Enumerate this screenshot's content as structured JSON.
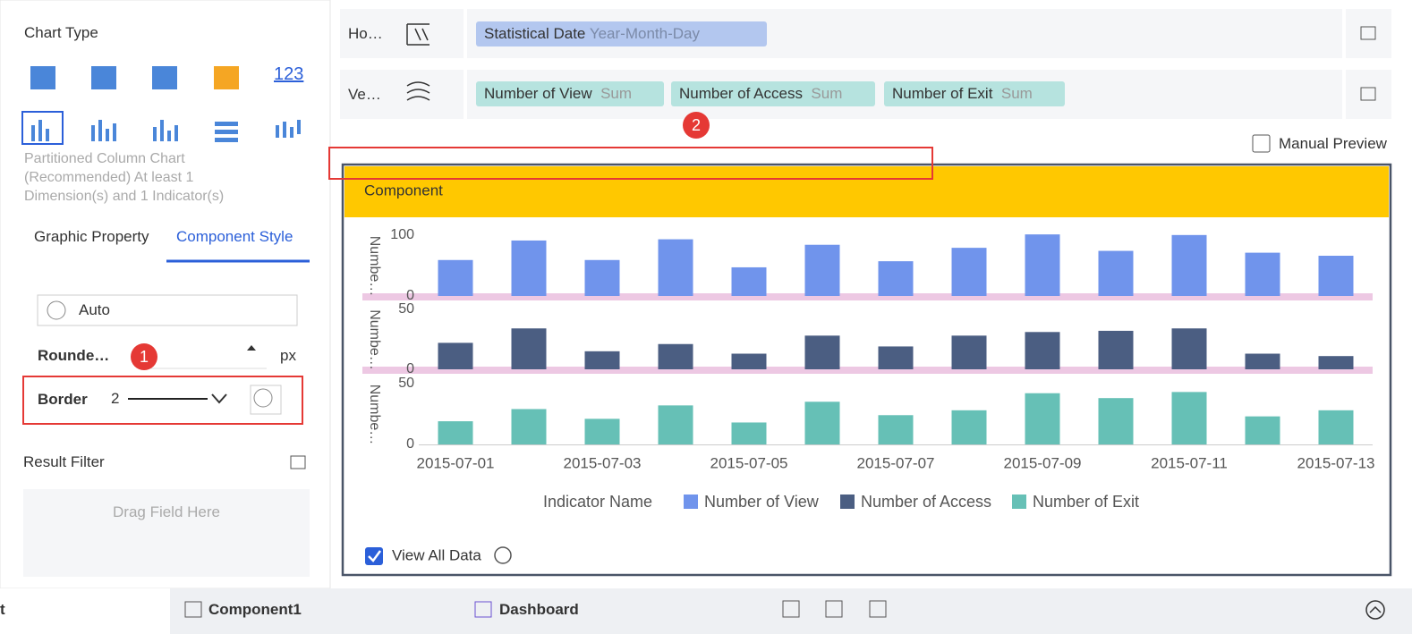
{
  "sidebar": {
    "chart_type_title": "Chart Type",
    "icon_text": "123",
    "description": "Partitioned Column Chart (Recommended) At least 1 Dimension(s) and 1 Indicator(s)",
    "tabs": [
      "Graphic Property",
      "Component Style"
    ],
    "auto_select": "Auto",
    "rounded_label": "Rounde…",
    "rounded_unit": "px",
    "badge_1": 1,
    "border_label": "Border",
    "border_width": 2,
    "result_filter": "Result Filter",
    "drag_hint": "Drag Field Here"
  },
  "fields": {
    "horizontal_label": "Ho…",
    "vertical_label": "Ve…",
    "date_chip": {
      "name": "Statistical Date",
      "format": "Year-Month-Day"
    },
    "value_chips": [
      {
        "name": "Number of View",
        "agg": "Sum"
      },
      {
        "name": "Number of Access",
        "agg": "Sum"
      },
      {
        "name": "Number of Exit",
        "agg": "Sum"
      }
    ],
    "badge_2": 2,
    "manual_preview": "Manual Preview"
  },
  "component_title": "Component",
  "chart_data": {
    "type": "bar",
    "categories": [
      "2015-07-01",
      null,
      "2015-07-03",
      null,
      "2015-07-05",
      null,
      "2015-07-07",
      null,
      "2015-07-09",
      null,
      "2015-07-11",
      null,
      "2015-07-13"
    ],
    "legend_title": "Indicator Name",
    "series": [
      {
        "name": "Number of View",
        "color": "#7094ec",
        "axis_label": "Numbe…",
        "ylim": [
          0,
          110
        ],
        "yticks": [
          0,
          100
        ],
        "values": [
          59,
          91,
          59,
          93,
          47,
          84,
          57,
          79,
          101,
          74,
          100,
          71,
          66
        ]
      },
      {
        "name": "Number of Access",
        "color": "#4b5e82",
        "axis_label": "Numbe…",
        "ylim": [
          0,
          55
        ],
        "yticks": [
          0,
          50
        ],
        "values": [
          22,
          34,
          15,
          21,
          13,
          28,
          19,
          28,
          31,
          32,
          34,
          13,
          11
        ]
      },
      {
        "name": "Number of Exit",
        "color": "#66c0b6",
        "axis_label": "Numbe…",
        "ylim": [
          0,
          55
        ],
        "yticks": [
          0,
          50
        ],
        "values": [
          19,
          29,
          21,
          32,
          18,
          35,
          24,
          28,
          42,
          38,
          43,
          23,
          28
        ]
      }
    ]
  },
  "view_all_data": "View All Data",
  "bottom_bar": {
    "left_tab": "t",
    "tabs": [
      "Component1",
      "Dashboard"
    ]
  }
}
